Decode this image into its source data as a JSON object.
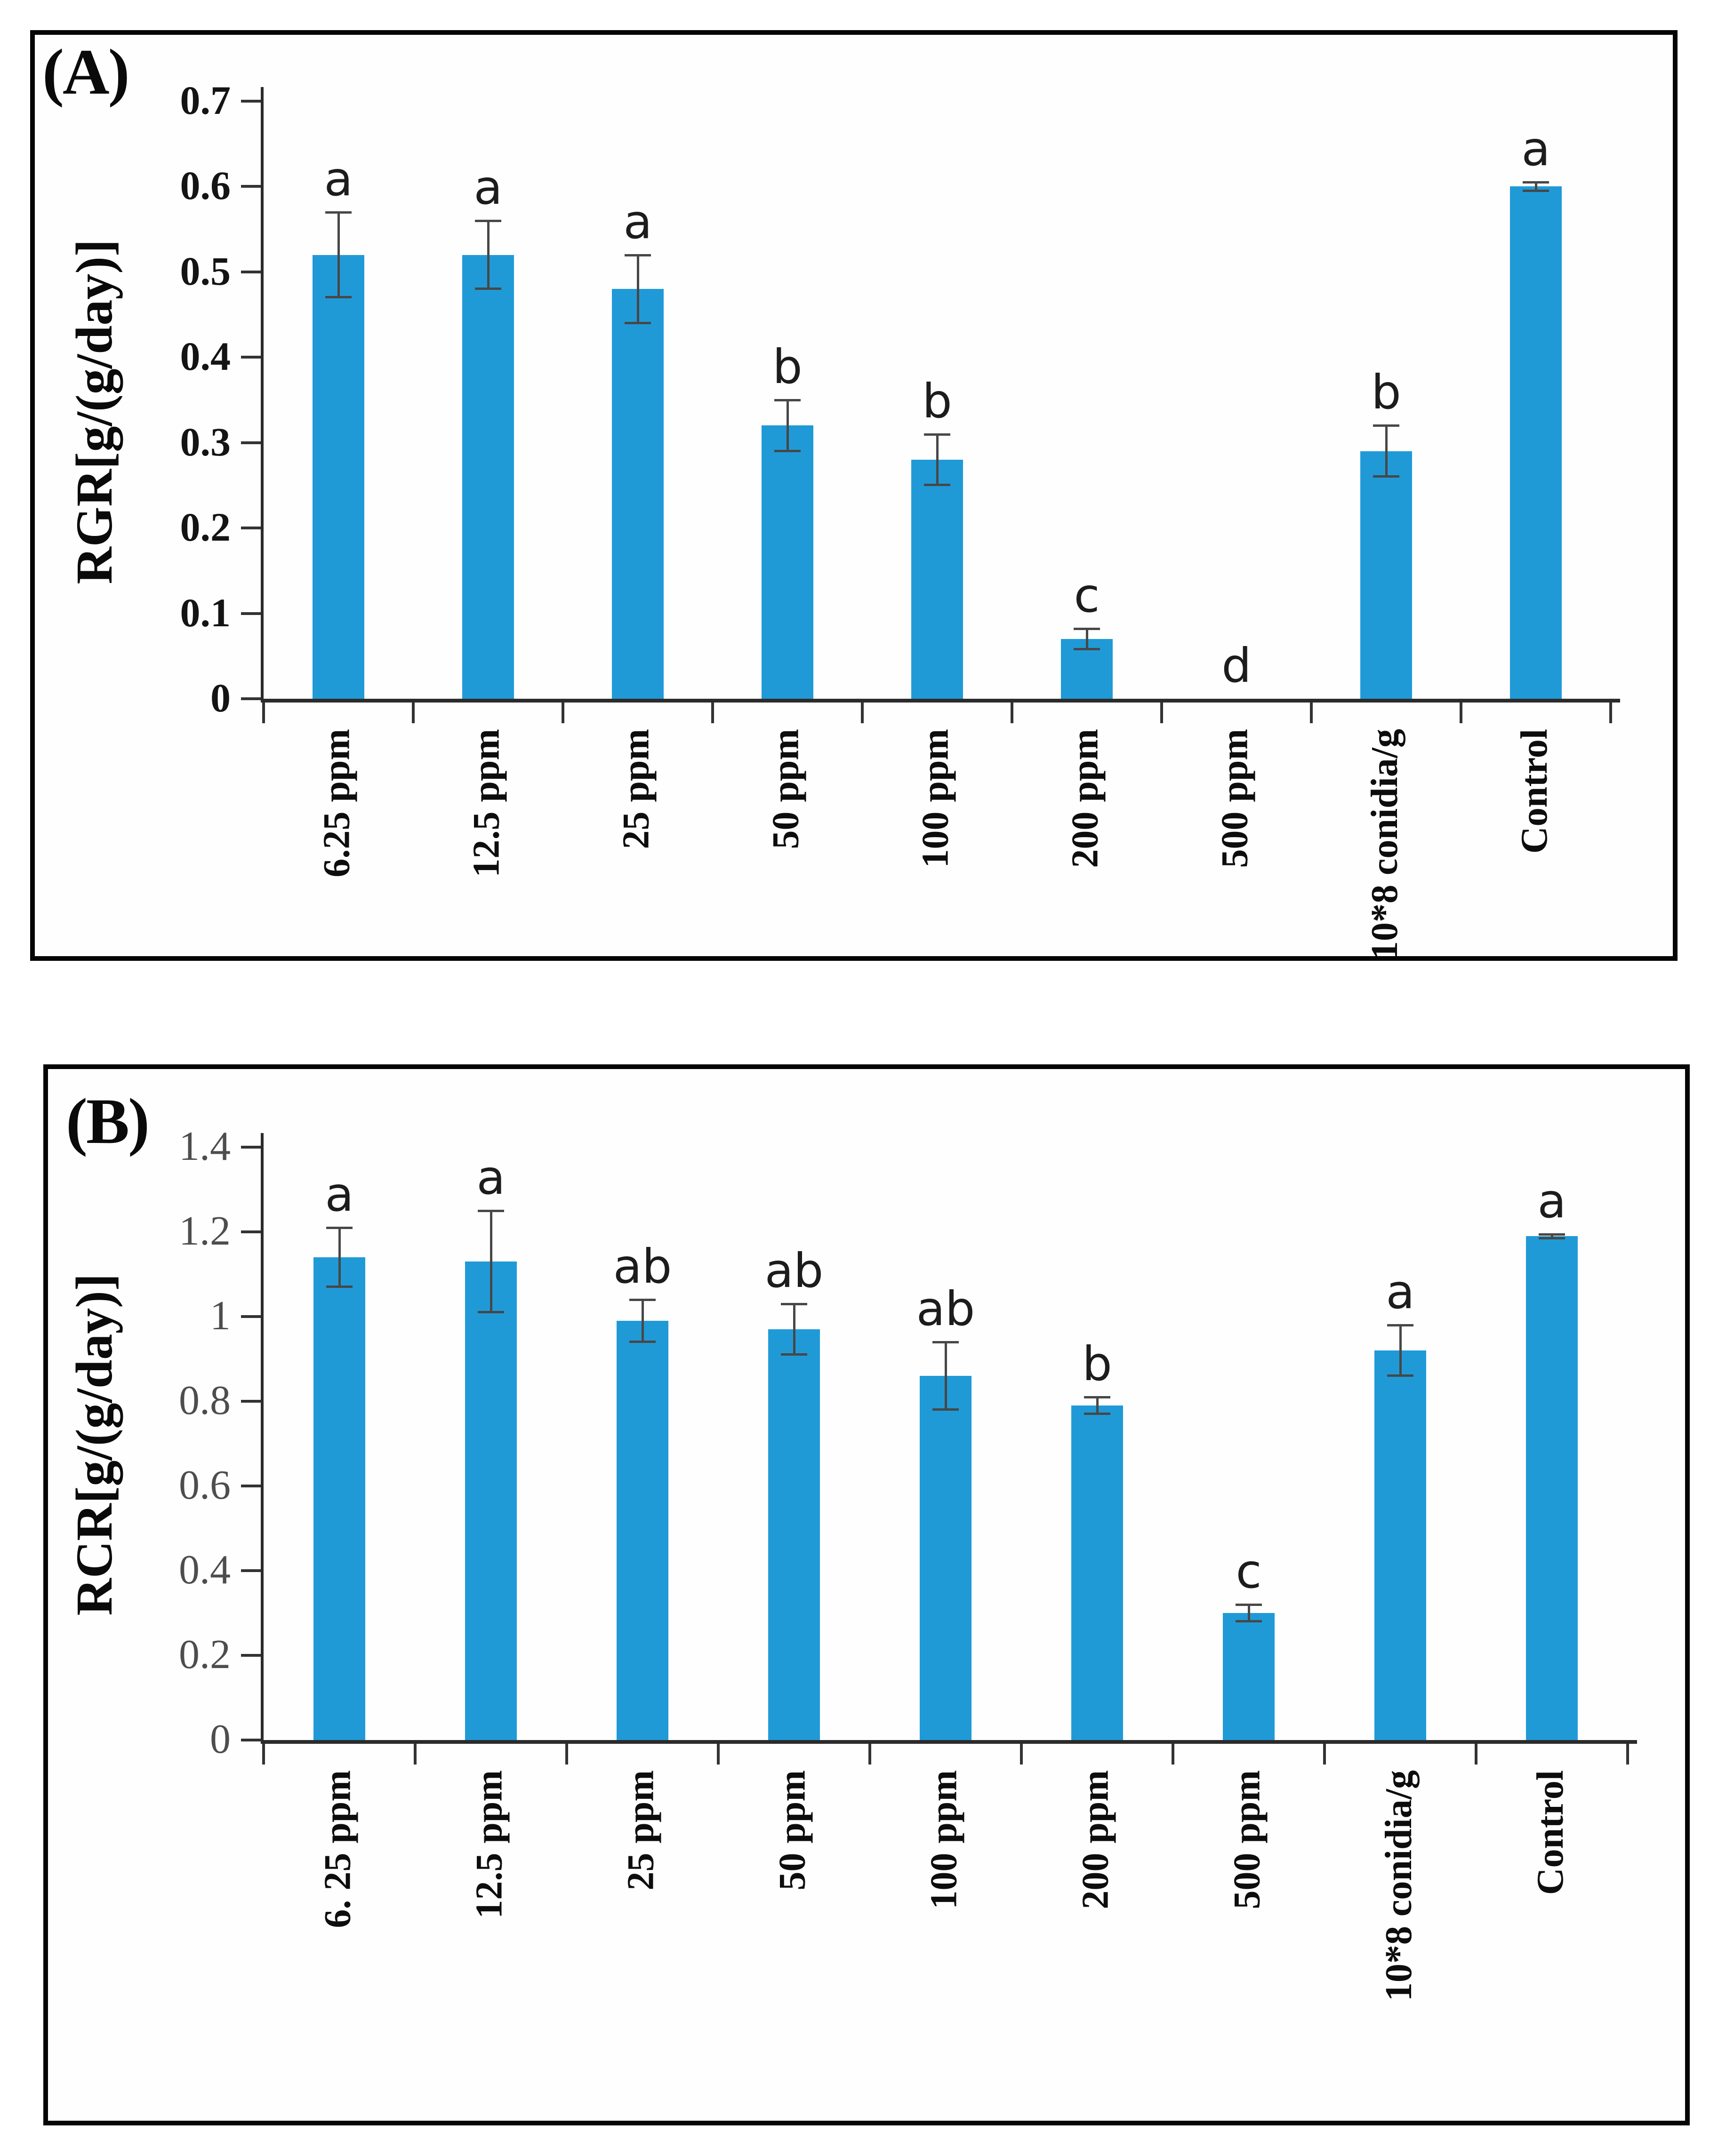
{
  "figure": {
    "background": "#ffffff",
    "bar_color": "#209ad7",
    "axis_color": "#2b2b2b",
    "error_bar_color": "#474747",
    "panel_tags": [
      "(A)",
      "(B)"
    ]
  },
  "chart_data": [
    {
      "type": "bar",
      "panel": "(A)",
      "title": "",
      "xlabel": "",
      "ylabel": "RGR[g/(g/day)]",
      "ylim": [
        0,
        0.7
      ],
      "yticklabels": [
        "0",
        "0.1",
        "0.2",
        "0.3",
        "0.4",
        "0.5",
        "0.6",
        "0.7"
      ],
      "categories": [
        "6.25 ppm",
        "12.5 ppm",
        "25 ppm",
        "50 ppm",
        "100 ppm",
        "200 ppm",
        "500 ppm",
        "10*8 conidia/g",
        "Control"
      ],
      "values": [
        0.52,
        0.52,
        0.48,
        0.32,
        0.28,
        0.07,
        0,
        0.29,
        0.6
      ],
      "errors": [
        0.05,
        0.04,
        0.04,
        0.03,
        0.03,
        0.012,
        0,
        0.03,
        0.005
      ],
      "sig_letters": [
        "a",
        "a",
        "a",
        "b",
        "b",
        "c",
        "d",
        "b",
        "a"
      ],
      "bar_color": "#209ad7",
      "grid": false,
      "legend": null
    },
    {
      "type": "bar",
      "panel": "(B)",
      "title": "",
      "xlabel": "",
      "ylabel": "RCR[g/(g/day)]",
      "ylim": [
        0,
        1.4
      ],
      "yticklabels": [
        "0",
        "0.2",
        "0.4",
        "0.6",
        "0.8",
        "1",
        "1.2",
        "1.4"
      ],
      "categories": [
        "6. 25 ppm",
        "12.5 ppm",
        "25 ppm",
        "50 ppm",
        "100 ppm",
        "200 ppm",
        "500 ppm",
        "10*8 conidia/g",
        "Control"
      ],
      "values": [
        1.14,
        1.13,
        0.99,
        0.97,
        0.86,
        0.79,
        0.3,
        0.92,
        1.19
      ],
      "errors": [
        0.07,
        0.12,
        0.05,
        0.06,
        0.08,
        0.02,
        0.02,
        0.06,
        0.005
      ],
      "sig_letters": [
        "a",
        "a",
        "ab",
        "ab",
        "ab",
        "b",
        "c",
        "a",
        "a"
      ],
      "bar_color": "#209ad7",
      "grid": false,
      "legend": null
    }
  ]
}
